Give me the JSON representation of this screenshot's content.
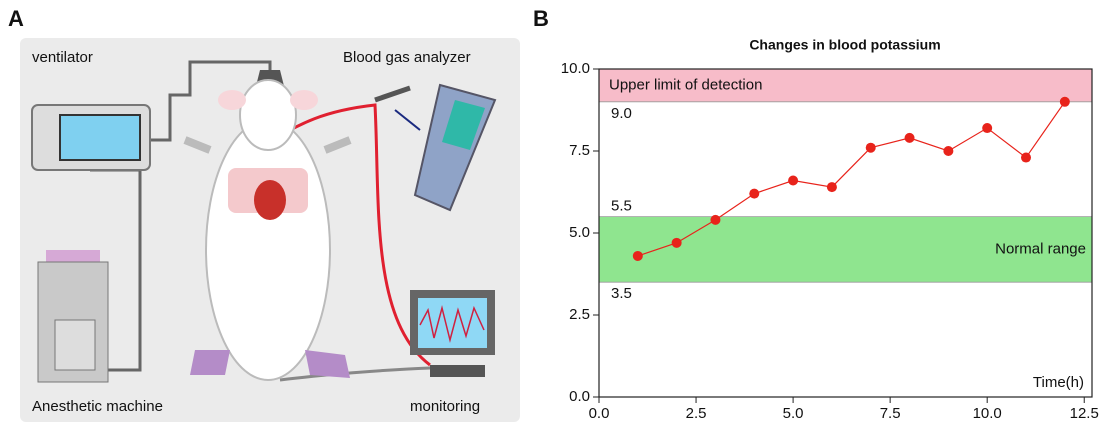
{
  "panel_labels": [
    "A",
    "B"
  ],
  "illustration": {
    "labels": [
      "ventilator",
      "Blood gas analyzer",
      "Anesthetic machine",
      "monitoring"
    ]
  },
  "chart_data": {
    "type": "line",
    "title": "Changes in blood potassium",
    "x_label": "Time(h)",
    "x": [
      1,
      2,
      3,
      4,
      5,
      6,
      7,
      8,
      9,
      10,
      11,
      12
    ],
    "values": [
      4.3,
      4.7,
      5.4,
      6.2,
      6.6,
      6.4,
      7.6,
      7.9,
      7.5,
      8.2,
      7.3,
      9.0
    ],
    "color": "#e8231b",
    "xlim": [
      0,
      12.7
    ],
    "ylim": [
      0,
      10
    ],
    "xticks": [
      {
        "value": 0,
        "label": "0.0"
      },
      {
        "value": 2.5,
        "label": "2.5"
      },
      {
        "value": 5,
        "label": "5.0"
      },
      {
        "value": 7.5,
        "label": "7.5"
      },
      {
        "value": 10,
        "label": "10.0"
      },
      {
        "value": 12.5,
        "label": "12.5"
      }
    ],
    "yticks": [
      {
        "value": 0,
        "label": "0.0"
      },
      {
        "value": 2.5,
        "label": "2.5"
      },
      {
        "value": 5,
        "label": "5.0"
      },
      {
        "value": 7.5,
        "label": "7.5"
      },
      {
        "value": 10,
        "label": "10.0"
      }
    ],
    "bands": [
      {
        "from": 9,
        "to": 10,
        "label": "Upper limit of detection",
        "color": "#f7bcc9",
        "from_label": "9.0"
      },
      {
        "from": 3.5,
        "to": 5.5,
        "label": "Normal range",
        "color": "#8fe58f",
        "from_label": "3.5",
        "to_label": "5.5"
      }
    ]
  }
}
